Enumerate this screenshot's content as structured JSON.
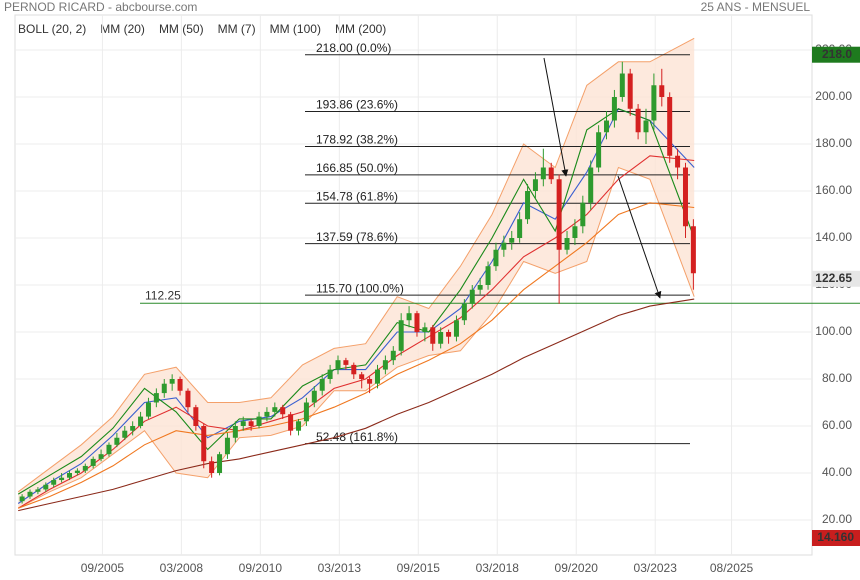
{
  "chart_data": {
    "type": "candlestick",
    "title": "PERNOD RICARD - abcbourse.com",
    "subtitle": "25 ANS - MENSUEL",
    "xlim": [
      2002.9,
      2028.13
    ],
    "ylim": [
      5.1,
      234.9
    ],
    "xticks": [
      {
        "value": 2005.667,
        "label": "09/2005"
      },
      {
        "value": 2008.167,
        "label": "03/2008"
      },
      {
        "value": 2010.667,
        "label": "09/2010"
      },
      {
        "value": 2013.167,
        "label": "03/2013"
      },
      {
        "value": 2015.667,
        "label": "09/2015"
      },
      {
        "value": 2018.167,
        "label": "03/2018"
      },
      {
        "value": 2020.667,
        "label": "09/2020"
      },
      {
        "value": 2023.167,
        "label": "03/2023"
      },
      {
        "value": 2025.583,
        "label": "08/2025"
      }
    ],
    "yticks": [
      {
        "value": 20,
        "label": "20.00"
      },
      {
        "value": 40,
        "label": "40.00"
      },
      {
        "value": 60,
        "label": "60.00"
      },
      {
        "value": 80,
        "label": "80.00"
      },
      {
        "value": 100,
        "label": "100.00"
      },
      {
        "value": 120,
        "label": "120.00"
      },
      {
        "value": 140,
        "label": "140.00"
      },
      {
        "value": 160,
        "label": "160.00"
      },
      {
        "value": 180,
        "label": "180.00"
      },
      {
        "value": 200,
        "label": "200.00"
      },
      {
        "value": 220,
        "label": "220.00"
      }
    ],
    "grid": true,
    "up_color": "#2e9a2e",
    "down_color": "#d42020",
    "candles": {
      "x": [
        2003.125,
        2003.375,
        2003.625,
        2003.875,
        2004.125,
        2004.375,
        2004.625,
        2004.875,
        2005.125,
        2005.375,
        2005.625,
        2005.875,
        2006.125,
        2006.375,
        2006.625,
        2006.875,
        2007.125,
        2007.375,
        2007.625,
        2007.875,
        2008.125,
        2008.375,
        2008.625,
        2008.875,
        2009.125,
        2009.375,
        2009.625,
        2009.875,
        2010.125,
        2010.375,
        2010.625,
        2010.875,
        2011.125,
        2011.375,
        2011.625,
        2011.875,
        2012.125,
        2012.375,
        2012.625,
        2012.875,
        2013.125,
        2013.375,
        2013.625,
        2013.875,
        2014.125,
        2014.375,
        2014.625,
        2014.875,
        2015.125,
        2015.375,
        2015.625,
        2015.875,
        2016.125,
        2016.375,
        2016.625,
        2016.875,
        2017.125,
        2017.375,
        2017.625,
        2017.875,
        2018.125,
        2018.375,
        2018.625,
        2018.875,
        2019.125,
        2019.375,
        2019.625,
        2019.875,
        2020.125,
        2020.375,
        2020.625,
        2020.875,
        2021.125,
        2021.375,
        2021.625,
        2021.875,
        2022.125,
        2022.375,
        2022.625,
        2022.875,
        2023.125,
        2023.375,
        2023.625,
        2023.875,
        2024.125,
        2024.375
      ],
      "open": [
        28,
        30,
        32,
        33,
        35,
        37,
        38,
        40,
        41,
        43,
        46,
        48,
        52,
        55,
        58,
        60,
        64,
        70,
        74,
        78,
        80,
        75,
        68,
        60,
        45,
        40,
        48,
        55,
        60,
        62,
        60,
        64,
        66,
        68,
        65,
        58,
        62,
        70,
        75,
        80,
        84,
        88,
        86,
        82,
        80,
        78,
        84,
        88,
        92,
        105,
        108,
        100,
        102,
        95,
        100,
        98,
        105,
        112,
        118,
        120,
        128,
        135,
        138,
        140,
        148,
        160,
        165,
        170,
        165,
        135,
        140,
        145,
        155,
        170,
        185,
        190,
        200,
        210,
        195,
        185,
        190,
        205,
        200,
        175,
        170,
        145
      ],
      "high": [
        31,
        33,
        34,
        36,
        38,
        40,
        41,
        42,
        44,
        47,
        50,
        53,
        57,
        60,
        62,
        66,
        72,
        76,
        80,
        82,
        81,
        76,
        69,
        61,
        47,
        49,
        57,
        62,
        64,
        63,
        66,
        68,
        70,
        69,
        66,
        63,
        72,
        77,
        82,
        86,
        90,
        89,
        87,
        83,
        81,
        86,
        90,
        94,
        108,
        111,
        109,
        104,
        103,
        102,
        101,
        107,
        114,
        120,
        123,
        130,
        138,
        141,
        143,
        151,
        163,
        168,
        178,
        172,
        167,
        143,
        148,
        158,
        173,
        188,
        194,
        203,
        215,
        212,
        197,
        195,
        210,
        212,
        202,
        178,
        172,
        148
      ],
      "low": [
        27,
        29,
        31,
        32,
        34,
        36,
        37,
        39,
        40,
        42,
        45,
        47,
        51,
        54,
        56,
        59,
        63,
        68,
        72,
        75,
        73,
        66,
        58,
        42,
        38,
        39,
        46,
        53,
        58,
        58,
        59,
        62,
        64,
        63,
        56,
        56,
        60,
        68,
        73,
        78,
        82,
        84,
        80,
        76,
        74,
        76,
        82,
        86,
        90,
        102,
        98,
        96,
        92,
        93,
        95,
        96,
        103,
        110,
        116,
        118,
        126,
        132,
        135,
        138,
        146,
        157,
        162,
        163,
        112,
        133,
        137,
        142,
        152,
        168,
        182,
        187,
        198,
        192,
        182,
        180,
        186,
        196,
        172,
        165,
        140,
        118
      ],
      "close": [
        30,
        32,
        33,
        35,
        37,
        38,
        40,
        41,
        43,
        46,
        48,
        52,
        55,
        58,
        60,
        64,
        70,
        74,
        78,
        80,
        75,
        68,
        60,
        45,
        40,
        48,
        55,
        60,
        62,
        60,
        64,
        66,
        68,
        65,
        58,
        62,
        70,
        75,
        80,
        84,
        88,
        86,
        82,
        80,
        78,
        84,
        88,
        92,
        105,
        108,
        100,
        102,
        95,
        100,
        98,
        105,
        112,
        118,
        120,
        128,
        135,
        138,
        140,
        148,
        160,
        165,
        170,
        165,
        135,
        140,
        145,
        155,
        170,
        185,
        190,
        200,
        210,
        195,
        185,
        190,
        205,
        200,
        175,
        170,
        145,
        125
      ]
    },
    "line_x": [
      2003,
      2004,
      2005,
      2006,
      2007,
      2008,
      2009,
      2010,
      2011,
      2012,
      2013,
      2014,
      2015,
      2016,
      2017,
      2018,
      2019,
      2020,
      2021,
      2022,
      2023,
      2024.4
    ],
    "series": [
      {
        "name": "BOLL (20, 2)",
        "color": "#f4a06a",
        "fill": "#fde3d5",
        "upper": [
          32,
          42,
          52,
          64,
          82,
          85,
          70,
          70,
          72,
          86,
          93,
          95,
          115,
          110,
          128,
          150,
          180,
          170,
          205,
          215,
          215,
          225
        ],
        "lower": [
          25,
          32,
          38,
          48,
          58,
          40,
          38,
          55,
          56,
          60,
          75,
          75,
          85,
          90,
          92,
          108,
          130,
          125,
          130,
          170,
          165,
          115
        ]
      },
      {
        "name": "MM (20)",
        "color": "#3a5fd0",
        "values": [
          27,
          36,
          44,
          56,
          70,
          72,
          55,
          62,
          64,
          72,
          84,
          84,
          100,
          100,
          110,
          130,
          155,
          148,
          168,
          195,
          190,
          170
        ]
      },
      {
        "name": "MM (50)",
        "color": "#e03030",
        "values": [
          25,
          33,
          40,
          50,
          62,
          68,
          60,
          58,
          62,
          66,
          76,
          80,
          90,
          98,
          106,
          118,
          132,
          140,
          150,
          165,
          175,
          173
        ]
      },
      {
        "name": "MM (7)",
        "color": "#1a8a1a",
        "values": [
          31,
          39,
          47,
          59,
          76,
          66,
          50,
          63,
          63,
          77,
          84,
          86,
          104,
          100,
          118,
          140,
          165,
          143,
          186,
          195,
          190,
          140
        ]
      },
      {
        "name": "MM (100)",
        "color": "#f07820",
        "values": [
          25,
          30,
          36,
          43,
          52,
          58,
          56,
          58,
          60,
          63,
          68,
          74,
          82,
          88,
          95,
          105,
          118,
          128,
          138,
          150,
          155,
          153
        ]
      },
      {
        "name": "MM (200)",
        "color": "#8b2a1a",
        "values": [
          24,
          27,
          30,
          33,
          37,
          41,
          44,
          46,
          49,
          52,
          55,
          59,
          65,
          70,
          76,
          82,
          89,
          95,
          101,
          107,
          111,
          114
        ]
      }
    ],
    "fib_levels": [
      {
        "value": 218,
        "label": "218.00  (0.0%)"
      },
      {
        "value": 193.86,
        "label": "193.86  (23.6%)"
      },
      {
        "value": 178.92,
        "label": "178.92  (38.2%)"
      },
      {
        "value": 166.85,
        "label": "166.85  (50.0%)"
      },
      {
        "value": 154.78,
        "label": "154.78  (61.8%)"
      },
      {
        "value": 137.59,
        "label": "137.59  (78.6%)"
      },
      {
        "value": 115.7,
        "label": "115.70  (100.0%)"
      },
      {
        "value": 52.48,
        "label": "52.48  (161.8%)"
      }
    ],
    "support_line": {
      "value": 112.25,
      "label": "112.25",
      "color": "#2a8a2a"
    },
    "badges": [
      {
        "value": 218,
        "label": "218.0",
        "color": "#1e7a1e"
      },
      {
        "value": 122.65,
        "label": "122.65",
        "color": "#e6e6e6"
      }
    ],
    "volume_badge": {
      "label": "14.160",
      "color": "#c81e1e"
    }
  }
}
